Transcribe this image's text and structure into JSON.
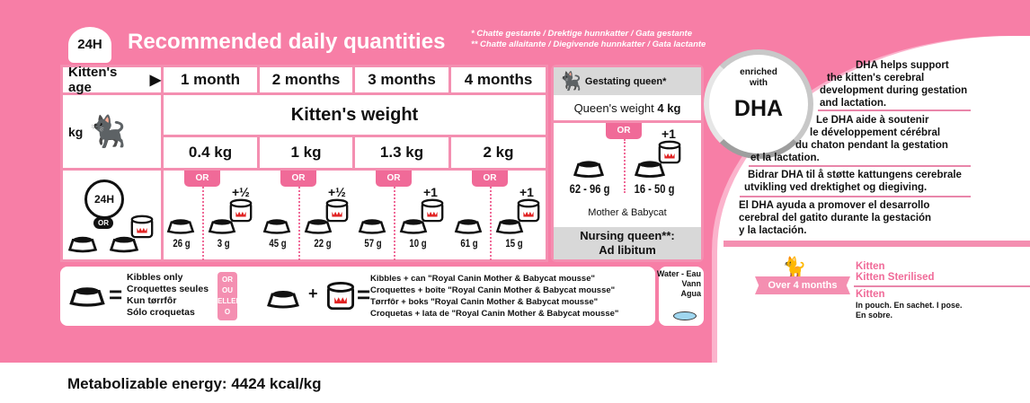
{
  "header": {
    "badge": "24H",
    "title": "Recommended daily quantities",
    "note1": "* Chatte gestante / Drektige hunnkatter  / Gata gestante",
    "note2": "** Chatte allaitante / Diegivende hunnkatter / Gata lactante"
  },
  "table": {
    "age_label": "Kitten's age",
    "ages": [
      "1 month",
      "2 months",
      "3 months",
      "4 months"
    ],
    "weight_label": "Kitten's weight",
    "kg_label": "kg",
    "weights": [
      "0.4 kg",
      "1 kg",
      "1.3 kg",
      "2 kg"
    ],
    "or": "OR",
    "clock_label": "24H",
    "columns": [
      {
        "kibbles": "26 g",
        "mix": "3 g",
        "can": "+½"
      },
      {
        "kibbles": "45 g",
        "mix": "22 g",
        "can": "+½"
      },
      {
        "kibbles": "57 g",
        "mix": "10 g",
        "can": "+1"
      },
      {
        "kibbles": "61 g",
        "mix": "15 g",
        "can": "+1"
      }
    ]
  },
  "queen": {
    "title": "Gestating queen*",
    "weight_label": "Queen's weight",
    "weight": "4 kg",
    "or": "OR",
    "can": "+1",
    "kibbles": "62 - 96 g",
    "mix": "16 - 50 g",
    "product": "Mother & Babycat",
    "nursing1": "Nursing queen**:",
    "nursing2": "Ad libitum"
  },
  "legend": {
    "kibbles": [
      "Kibbles only",
      "Croquettes seules",
      "Kun tørrfôr",
      "Sólo croquetas"
    ],
    "or": [
      "OR",
      "OU",
      "ELLER",
      "O"
    ],
    "mix": [
      "Kibbles + can \"Royal Canin Mother & Babycat mousse\"",
      "Croquettes + boîte \"Royal Canin Mother & Babycat mousse\"",
      "Tørrfôr + boks \"Royal Canin Mother & Babycat mousse\"",
      "Croquetas + lata de \"Royal Canin Mother & Babycat mousse\""
    ],
    "water": [
      "Water - Eau",
      "Vann",
      "Agua"
    ]
  },
  "dha": {
    "badge1": "enriched",
    "badge2": "with",
    "badge3": "DHA",
    "en": [
      "DHA helps support",
      "the kitten's cerebral",
      "development during gestation",
      "and lactation."
    ],
    "fr": [
      "Le DHA aide à soutenir",
      "le développement cérébral",
      "du chaton pendant la gestation",
      "et la lactation."
    ],
    "no": [
      "Bidrar DHA til å støtte kattungens cerebrale",
      "utvikling ved drektighet og diegiving."
    ],
    "es": [
      "El DHA ayuda a promover el desarrollo",
      "cerebral del gatito durante la gestación",
      "y la lactación."
    ]
  },
  "next": {
    "ribbon": "Over 4 months",
    "p1": "Kitten",
    "p2": "Kitten Sterilised",
    "p3": "Kitten",
    "p3_desc1": "In pouch. En sachet. I pose.",
    "p3_desc2": "En sobre."
  },
  "footer": {
    "energy": "Metabolizable energy: 4424 kcal/kg"
  },
  "colors": {
    "pink": "#f77ea6",
    "accent": "#f06a98",
    "grey": "#d8d8d8"
  }
}
